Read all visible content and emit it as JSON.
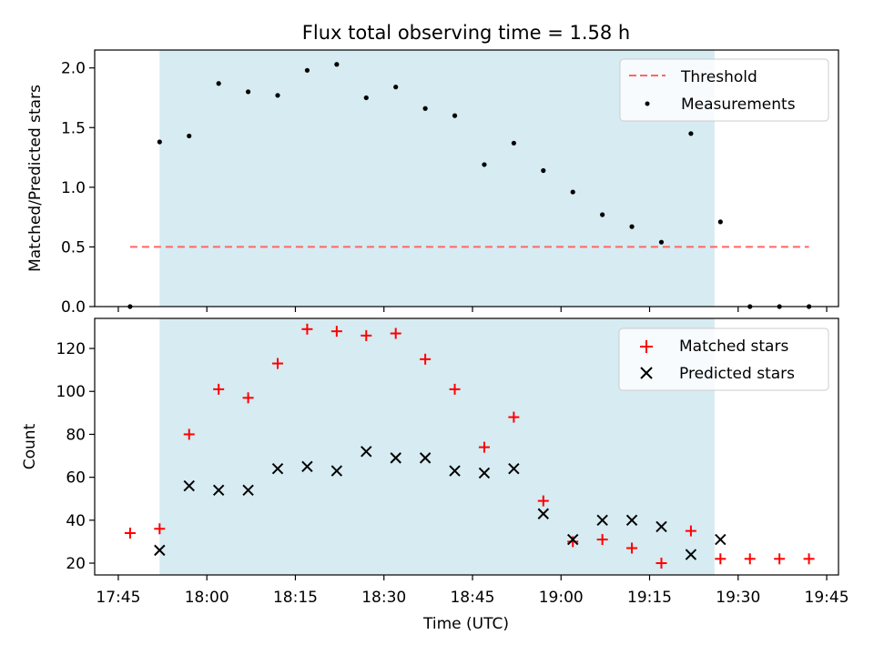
{
  "figure": {
    "title": "Flux total observing time = 1.58 h"
  },
  "colors": {
    "shade": "#add8e6",
    "threshold": "#ff6666",
    "measurement": "#000000",
    "matched": "#ff0000",
    "predicted": "#000000"
  },
  "chart_data": [
    {
      "type": "scatter",
      "panel": "top",
      "title": "Flux total observing time = 1.58 h",
      "xlabel": "",
      "ylabel": "Matched/Predicted stars",
      "xlim": [
        "17:41",
        "19:47"
      ],
      "ylim": [
        0,
        2.15
      ],
      "yticks": [
        0.0,
        0.5,
        1.0,
        1.5,
        2.0
      ],
      "ytick_labels": [
        "0.0",
        "0.5",
        "1.0",
        "1.5",
        "2.0"
      ],
      "shaded_interval": [
        "17:52",
        "19:26"
      ],
      "legend": {
        "position": "top-right",
        "entries": [
          "Threshold",
          "Measurements"
        ]
      },
      "series": [
        {
          "name": "Threshold",
          "kind": "dashed-line",
          "x": [
            "17:47",
            "19:42"
          ],
          "y": [
            0.5,
            0.5
          ]
        },
        {
          "name": "Measurements",
          "kind": "points",
          "x": [
            "17:47",
            "17:52",
            "17:57",
            "18:02",
            "18:07",
            "18:12",
            "18:17",
            "18:22",
            "18:27",
            "18:32",
            "18:37",
            "18:42",
            "18:47",
            "18:52",
            "18:57",
            "19:02",
            "19:07",
            "19:12",
            "19:17",
            "19:22",
            "19:27",
            "19:32",
            "19:37",
            "19:42"
          ],
          "y": [
            0.0,
            1.38,
            1.43,
            1.87,
            1.8,
            1.77,
            1.98,
            2.03,
            1.75,
            1.84,
            1.66,
            1.6,
            1.19,
            1.37,
            1.14,
            0.96,
            0.77,
            0.67,
            0.54,
            1.45,
            0.71,
            0.0,
            0.0,
            0.0
          ]
        }
      ]
    },
    {
      "type": "scatter",
      "panel": "bottom",
      "xlabel": "Time (UTC)",
      "ylabel": "Count",
      "xlim": [
        "17:41",
        "19:47"
      ],
      "ylim": [
        14.5,
        134
      ],
      "yticks": [
        20,
        40,
        60,
        80,
        100,
        120
      ],
      "ytick_labels": [
        "20",
        "40",
        "60",
        "80",
        "100",
        "120"
      ],
      "xticks": [
        "17:45",
        "18:00",
        "18:15",
        "18:30",
        "18:45",
        "19:00",
        "19:15",
        "19:30",
        "19:45"
      ],
      "xtick_labels": [
        "17:45",
        "18:00",
        "18:15",
        "18:30",
        "18:45",
        "19:00",
        "19:15",
        "19:30",
        "19:45"
      ],
      "shaded_interval": [
        "17:52",
        "19:26"
      ],
      "legend": {
        "position": "top-right",
        "entries": [
          "Matched stars",
          "Predicted stars"
        ]
      },
      "series": [
        {
          "name": "Matched stars",
          "marker": "plus",
          "x": [
            "17:47",
            "17:52",
            "17:57",
            "18:02",
            "18:07",
            "18:12",
            "18:17",
            "18:22",
            "18:27",
            "18:32",
            "18:37",
            "18:42",
            "18:47",
            "18:52",
            "18:57",
            "19:02",
            "19:07",
            "19:12",
            "19:17",
            "19:22",
            "19:27",
            "19:32",
            "19:37",
            "19:42"
          ],
          "y": [
            34,
            36,
            80,
            101,
            97,
            113,
            129,
            128,
            126,
            127,
            115,
            101,
            74,
            88,
            49,
            30,
            31,
            27,
            20,
            35,
            22,
            22,
            22,
            22
          ]
        },
        {
          "name": "Predicted stars",
          "marker": "x",
          "x": [
            "17:52",
            "17:57",
            "18:02",
            "18:07",
            "18:12",
            "18:17",
            "18:22",
            "18:27",
            "18:32",
            "18:37",
            "18:42",
            "18:47",
            "18:52",
            "18:57",
            "19:02",
            "19:07",
            "19:12",
            "19:17",
            "19:22",
            "19:27"
          ],
          "y": [
            26,
            56,
            54,
            54,
            64,
            65,
            63,
            72,
            69,
            69,
            63,
            62,
            64,
            43,
            31,
            40,
            40,
            37,
            24,
            31
          ]
        }
      ]
    }
  ]
}
